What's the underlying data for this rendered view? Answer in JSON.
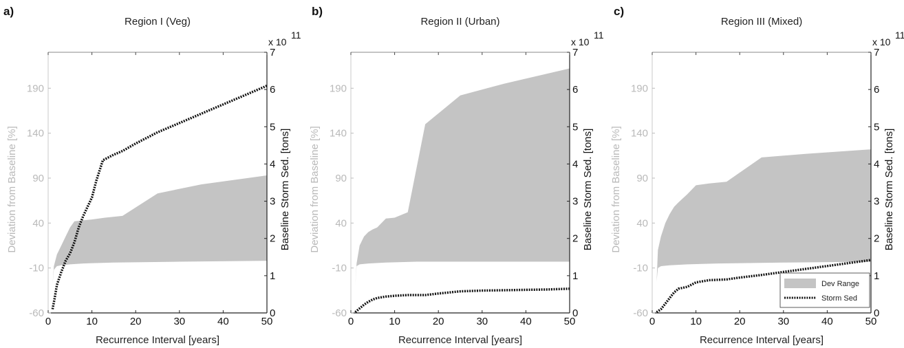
{
  "chart_data": [
    {
      "type": "area",
      "panel_label": "a)",
      "title": "Region I (Veg)",
      "xlabel": "Recurrence Interval [years]",
      "ylabel_left": "Deviation from Baseline [%]",
      "ylabel_right": "Baseline Storm Sed. [tons]",
      "right_multiplier": "x 10",
      "right_multiplier_exp": "11",
      "xlim": [
        0,
        50
      ],
      "ylim_left": [
        -60,
        230
      ],
      "ylim_right": [
        0,
        7
      ],
      "xticks": [
        "0",
        "10",
        "20",
        "30",
        "40",
        "50"
      ],
      "yticks_left": [
        "-60",
        "-10",
        "40",
        "90",
        "140",
        "190"
      ],
      "yticks_right": [
        "0",
        "1",
        "2",
        "3",
        "4",
        "5",
        "6",
        "7"
      ],
      "series": [
        {
          "kind": "band",
          "upper": [
            [
              1,
              -28
            ],
            [
              1.3,
              -8
            ],
            [
              2,
              5
            ],
            [
              3,
              15
            ],
            [
              4,
              25
            ],
            [
              5,
              35
            ],
            [
              6,
              42
            ],
            [
              8,
              43
            ],
            [
              10,
              44
            ],
            [
              13,
              46
            ],
            [
              17,
              48
            ],
            [
              25,
              73
            ],
            [
              35,
              83
            ],
            [
              50,
              93
            ]
          ],
          "lower": [
            [
              1,
              -28
            ],
            [
              1.3,
              -12
            ],
            [
              2,
              -8
            ],
            [
              3,
              -7
            ],
            [
              5,
              -6
            ],
            [
              8,
              -5
            ],
            [
              15,
              -4
            ],
            [
              30,
              -3
            ],
            [
              50,
              -2
            ]
          ]
        },
        {
          "kind": "line",
          "points": [
            [
              1,
              0.1
            ],
            [
              1.5,
              0.4
            ],
            [
              2,
              0.75
            ],
            [
              3,
              1.1
            ],
            [
              4,
              1.4
            ],
            [
              5,
              1.6
            ],
            [
              6,
              1.9
            ],
            [
              7,
              2.3
            ],
            [
              8,
              2.6
            ],
            [
              10,
              3.1
            ],
            [
              11,
              3.55
            ],
            [
              12.5,
              4.1
            ],
            [
              15,
              4.25
            ],
            [
              17,
              4.35
            ],
            [
              20,
              4.55
            ],
            [
              25,
              4.85
            ],
            [
              30,
              5.1
            ],
            [
              35,
              5.35
            ],
            [
              40,
              5.6
            ],
            [
              45,
              5.85
            ],
            [
              50,
              6.1
            ]
          ]
        }
      ]
    },
    {
      "type": "area",
      "panel_label": "b)",
      "title": "Region II (Urban)",
      "xlabel": "Recurrence Interval [years]",
      "ylabel_left": "Deviation from Baseline [%]",
      "ylabel_right": "Baseline Storm Sed. [tons]",
      "right_multiplier": "x 10",
      "right_multiplier_exp": "11",
      "xlim": [
        0,
        50
      ],
      "ylim_left": [
        -60,
        230
      ],
      "ylim_right": [
        0,
        7
      ],
      "xticks": [
        "0",
        "10",
        "20",
        "30",
        "40",
        "50"
      ],
      "yticks_left": [
        "-60",
        "-10",
        "40",
        "90",
        "140",
        "190"
      ],
      "yticks_right": [
        "0",
        "1",
        "2",
        "3",
        "4",
        "5",
        "6",
        "7"
      ],
      "series": [
        {
          "kind": "band",
          "upper": [
            [
              1,
              -30
            ],
            [
              1.3,
              -5
            ],
            [
              2,
              15
            ],
            [
              3,
              25
            ],
            [
              4,
              30
            ],
            [
              5,
              33
            ],
            [
              6,
              35
            ],
            [
              8,
              45
            ],
            [
              10,
              46
            ],
            [
              13,
              52
            ],
            [
              17,
              150
            ],
            [
              25,
              182
            ],
            [
              35,
              195
            ],
            [
              50,
              212
            ]
          ],
          "lower": [
            [
              1,
              -30
            ],
            [
              1.3,
              -8
            ],
            [
              2,
              -6
            ],
            [
              4,
              -5
            ],
            [
              8,
              -4
            ],
            [
              15,
              -3
            ],
            [
              30,
              -3
            ],
            [
              50,
              -3
            ]
          ]
        },
        {
          "kind": "line",
          "points": [
            [
              1,
              0.02
            ],
            [
              2,
              0.12
            ],
            [
              3,
              0.22
            ],
            [
              4,
              0.3
            ],
            [
              5,
              0.36
            ],
            [
              6,
              0.4
            ],
            [
              8,
              0.44
            ],
            [
              10,
              0.46
            ],
            [
              13,
              0.48
            ],
            [
              17,
              0.48
            ],
            [
              20,
              0.52
            ],
            [
              25,
              0.58
            ],
            [
              30,
              0.6
            ],
            [
              35,
              0.61
            ],
            [
              40,
              0.62
            ],
            [
              45,
              0.63
            ],
            [
              50,
              0.65
            ]
          ]
        }
      ]
    },
    {
      "type": "area",
      "panel_label": "c)",
      "title": "Region III (Mixed)",
      "xlabel": "Recurrence Interval [years]",
      "ylabel_left": "Deviation from Baseline [%]",
      "ylabel_right": "Baseline Storm Sed. [tons]",
      "right_multiplier": "x 10",
      "right_multiplier_exp": "11",
      "xlim": [
        0,
        50
      ],
      "ylim_left": [
        -60,
        230
      ],
      "ylim_right": [
        0,
        7
      ],
      "xticks": [
        "0",
        "10",
        "20",
        "30",
        "40",
        "50"
      ],
      "yticks_left": [
        "-60",
        "-10",
        "40",
        "90",
        "140",
        "190"
      ],
      "yticks_right": [
        "0",
        "1",
        "2",
        "3",
        "4",
        "5",
        "6",
        "7"
      ],
      "legend": {
        "position": "bottom-right",
        "entries": [
          "Dev Range",
          "Storm Sed"
        ]
      },
      "series": [
        {
          "kind": "band",
          "upper": [
            [
              1,
              -25
            ],
            [
              1.3,
              10
            ],
            [
              2,
              25
            ],
            [
              3,
              40
            ],
            [
              4,
              50
            ],
            [
              5,
              58
            ],
            [
              6,
              63
            ],
            [
              8,
              72
            ],
            [
              10,
              82
            ],
            [
              13,
              84
            ],
            [
              17,
              86
            ],
            [
              25,
              113
            ],
            [
              35,
              117
            ],
            [
              50,
              122
            ]
          ],
          "lower": [
            [
              1,
              -25
            ],
            [
              1.3,
              -10
            ],
            [
              2,
              -8
            ],
            [
              4,
              -7
            ],
            [
              8,
              -6
            ],
            [
              15,
              -5
            ],
            [
              30,
              -4
            ],
            [
              50,
              -3
            ]
          ]
        },
        {
          "kind": "line",
          "points": [
            [
              1,
              0.02
            ],
            [
              2,
              0.1
            ],
            [
              3,
              0.25
            ],
            [
              4,
              0.4
            ],
            [
              5,
              0.55
            ],
            [
              6,
              0.65
            ],
            [
              8,
              0.7
            ],
            [
              10,
              0.82
            ],
            [
              13,
              0.88
            ],
            [
              17,
              0.9
            ],
            [
              20,
              0.95
            ],
            [
              25,
              1.02
            ],
            [
              30,
              1.1
            ],
            [
              35,
              1.18
            ],
            [
              40,
              1.26
            ],
            [
              45,
              1.34
            ],
            [
              50,
              1.42
            ]
          ]
        }
      ]
    }
  ]
}
